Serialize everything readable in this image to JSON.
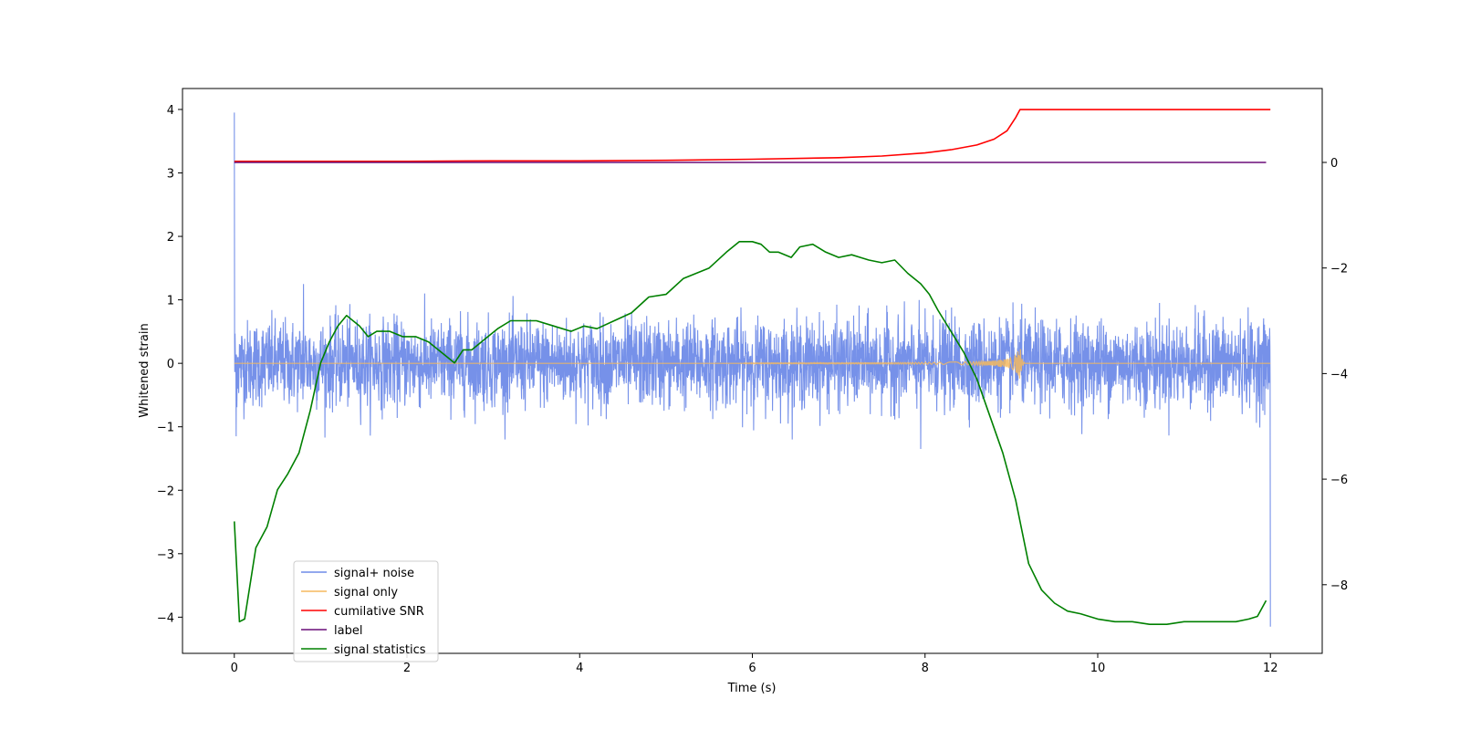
{
  "chart_data": {
    "type": "line",
    "title": "",
    "xlabel": "Time (s)",
    "ylabel": "Whitened strain",
    "y2label": "",
    "xlim": [
      -0.6,
      12.6
    ],
    "ylim": [
      -4.57,
      4.33
    ],
    "y2lim": [
      -9.3,
      1.4
    ],
    "x_ticks": [
      0,
      2,
      4,
      6,
      8,
      10,
      12
    ],
    "x_tick_labels": [
      "0",
      "2",
      "4",
      "6",
      "8",
      "10",
      "12"
    ],
    "y_ticks": [
      -4,
      -3,
      -2,
      -1,
      0,
      1,
      2,
      3,
      4
    ],
    "y_tick_labels": [
      "−4",
      "−3",
      "−2",
      "−1",
      "0",
      "1",
      "2",
      "3",
      "4"
    ],
    "y2_ticks": [
      -8,
      -6,
      -4,
      -2,
      0
    ],
    "y2_tick_labels": [
      "−8",
      "−6",
      "−4",
      "−2",
      "0"
    ],
    "grid": false,
    "legend_position": "lower-left",
    "series": [
      {
        "name": "signal+ noise",
        "label": "signal+ noise",
        "axis": "left",
        "color": "#6f8be8",
        "description": "noisy whitened strain around 0, amplitude ~0.8 with spikes; spike to 3.95 at t=0 and to -4.15 at t=12",
        "x_range": [
          0,
          12
        ],
        "typical_band": [
          -0.8,
          0.8
        ],
        "extremes": [
          [
            0.0,
            3.95
          ],
          [
            0.02,
            -1.15
          ],
          [
            0.8,
            1.25
          ],
          [
            7.95,
            -1.35
          ],
          [
            12.0,
            -4.15
          ]
        ]
      },
      {
        "name": "signal only",
        "label": "signal only",
        "axis": "left",
        "color": "#f5b95f",
        "description": "flat at 0 with a chirp that grows near t=9.1",
        "x_range": [
          0,
          12
        ],
        "chirp_peak_time": 9.1,
        "chirp_peak_amplitude": 0.3
      },
      {
        "name": "cumilative SNR",
        "label": "cumilative SNR",
        "axis": "right",
        "color": "#ff0000",
        "x": [
          0,
          1,
          2,
          3,
          4,
          5,
          6,
          7,
          7.5,
          8,
          8.3,
          8.6,
          8.8,
          8.95,
          9.05,
          9.1,
          9.5,
          10,
          11,
          12
        ],
        "y": [
          0.02,
          0.02,
          0.02,
          0.03,
          0.03,
          0.04,
          0.06,
          0.09,
          0.12,
          0.18,
          0.24,
          0.33,
          0.44,
          0.6,
          0.85,
          1.0,
          1.0,
          1.0,
          1.0,
          1.0
        ]
      },
      {
        "name": "label",
        "label": "label",
        "axis": "right",
        "color": "#6a0d78",
        "x": [
          0,
          11.95
        ],
        "y": [
          0,
          0
        ]
      },
      {
        "name": "signal statistics",
        "label": "signal statistics",
        "axis": "right",
        "color": "#008000",
        "x": [
          0,
          0.06,
          0.12,
          0.25,
          0.38,
          0.5,
          0.62,
          0.75,
          0.88,
          1.0,
          1.1,
          1.2,
          1.3,
          1.45,
          1.55,
          1.65,
          1.8,
          1.95,
          2.1,
          2.25,
          2.4,
          2.55,
          2.65,
          2.75,
          2.9,
          3.05,
          3.2,
          3.35,
          3.5,
          3.7,
          3.9,
          4.05,
          4.2,
          4.4,
          4.6,
          4.8,
          5.0,
          5.2,
          5.35,
          5.5,
          5.7,
          5.85,
          6.0,
          6.1,
          6.2,
          6.3,
          6.45,
          6.55,
          6.7,
          6.85,
          7.0,
          7.15,
          7.25,
          7.35,
          7.5,
          7.65,
          7.8,
          7.95,
          8.05,
          8.15,
          8.3,
          8.45,
          8.6,
          8.75,
          8.9,
          9.05,
          9.2,
          9.35,
          9.5,
          9.65,
          9.8,
          10.0,
          10.2,
          10.4,
          10.6,
          10.8,
          11.0,
          11.2,
          11.4,
          11.6,
          11.75,
          11.85,
          11.95
        ],
        "y": [
          -6.8,
          -8.7,
          -8.65,
          -7.3,
          -6.9,
          -6.2,
          -5.9,
          -5.5,
          -4.7,
          -3.8,
          -3.4,
          -3.1,
          -2.9,
          -3.1,
          -3.3,
          -3.2,
          -3.2,
          -3.3,
          -3.3,
          -3.4,
          -3.6,
          -3.8,
          -3.55,
          -3.55,
          -3.35,
          -3.15,
          -3.0,
          -3.0,
          -3.0,
          -3.1,
          -3.2,
          -3.1,
          -3.15,
          -3.0,
          -2.85,
          -2.55,
          -2.5,
          -2.2,
          -2.1,
          -2.0,
          -1.7,
          -1.5,
          -1.5,
          -1.55,
          -1.7,
          -1.7,
          -1.8,
          -1.6,
          -1.55,
          -1.7,
          -1.8,
          -1.75,
          -1.8,
          -1.85,
          -1.9,
          -1.85,
          -2.1,
          -2.3,
          -2.5,
          -2.8,
          -3.2,
          -3.6,
          -4.1,
          -4.8,
          -5.5,
          -6.4,
          -7.6,
          -8.1,
          -8.35,
          -8.5,
          -8.55,
          -8.65,
          -8.7,
          -8.7,
          -8.75,
          -8.75,
          -8.7,
          -8.7,
          -8.7,
          -8.7,
          -8.65,
          -8.6,
          -8.3
        ]
      }
    ]
  }
}
